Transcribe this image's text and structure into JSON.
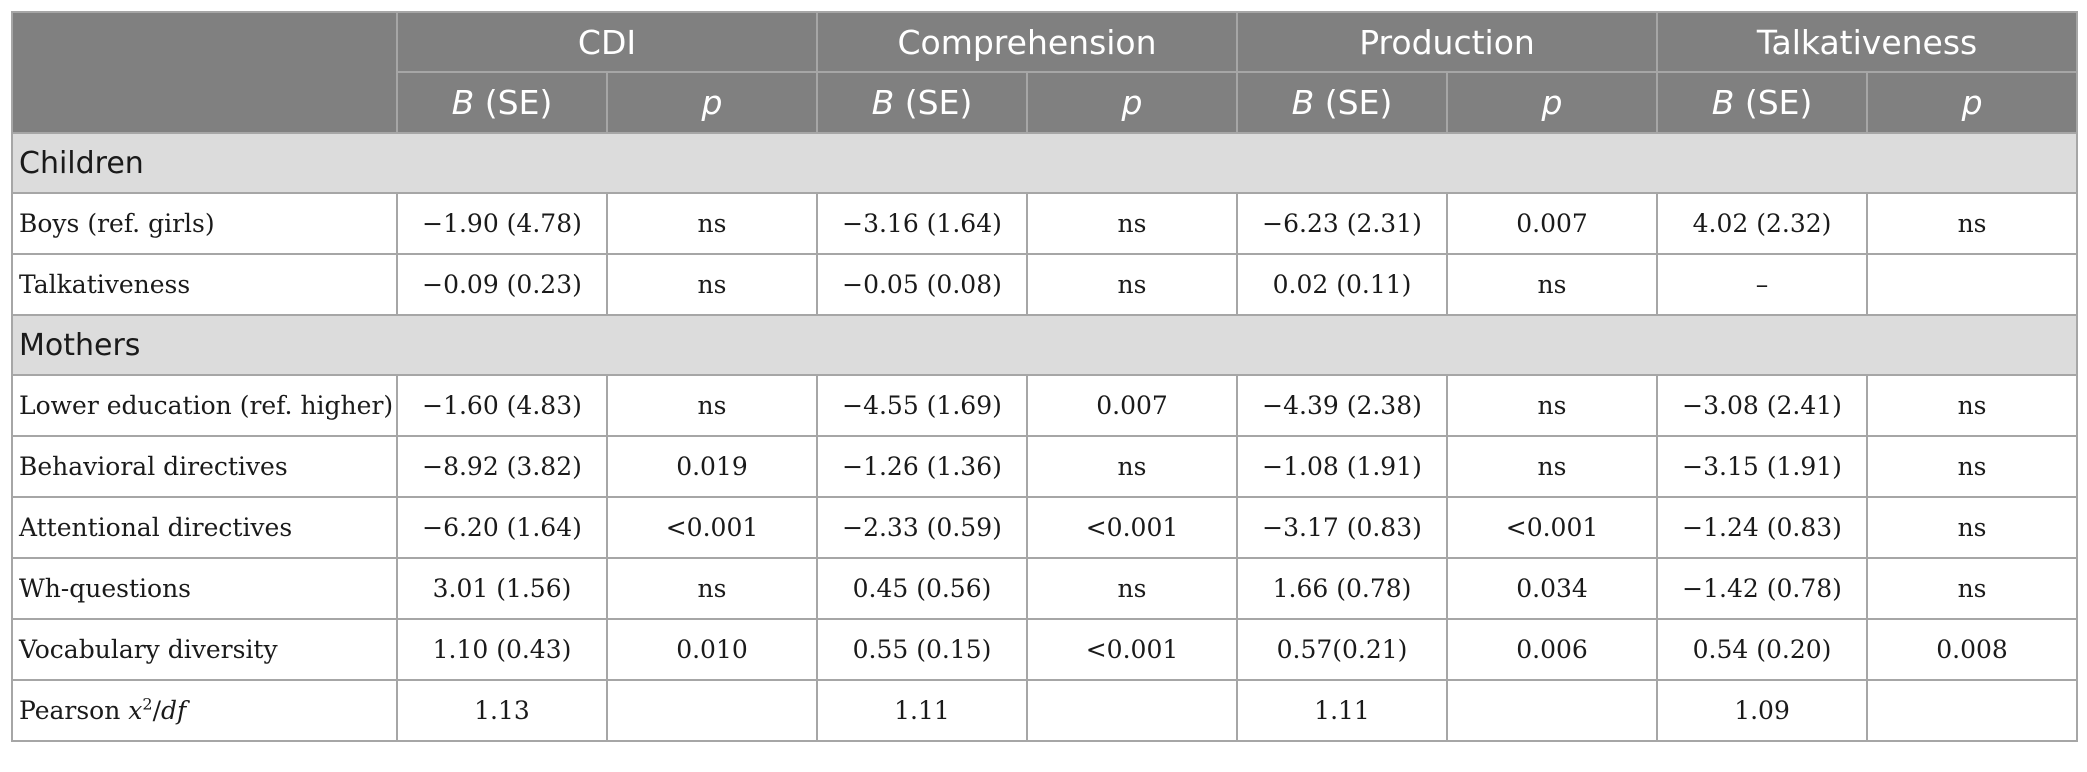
{
  "header": {
    "groups": [
      "CDI",
      "Comprehension",
      "Production",
      "Talkativeness"
    ],
    "sub_b": "B",
    "sub_se": " (SE)",
    "sub_p": "p"
  },
  "sections": [
    {
      "title": "Children",
      "rows": [
        {
          "label": "Boys (ref. girls)",
          "cells": [
            "−1.90 (4.78)",
            "ns",
            "−3.16 (1.64)",
            "ns",
            "−6.23 (2.31)",
            "0.007",
            "4.02 (2.32)",
            "ns"
          ]
        },
        {
          "label": "Talkativeness",
          "cells": [
            "−0.09 (0.23)",
            "ns",
            "−0.05 (0.08)",
            "ns",
            "0.02 (0.11)",
            "ns",
            "–",
            ""
          ]
        }
      ]
    },
    {
      "title": "Mothers",
      "rows": [
        {
          "label": "Lower education (ref. higher)",
          "cells": [
            "−1.60 (4.83)",
            "ns",
            "−4.55 (1.69)",
            "0.007",
            "−4.39 (2.38)",
            "ns",
            "−3.08 (2.41)",
            "ns"
          ]
        },
        {
          "label": "Behavioral directives",
          "cells": [
            "−8.92 (3.82)",
            "0.019",
            "−1.26 (1.36)",
            "ns",
            "−1.08 (1.91)",
            "ns",
            "−3.15 (1.91)",
            "ns"
          ]
        },
        {
          "label": "Attentional directives",
          "cells": [
            "−6.20 (1.64)",
            "<0.001",
            "−2.33 (0.59)",
            "<0.001",
            "−3.17 (0.83)",
            "<0.001",
            "−1.24 (0.83)",
            "ns"
          ]
        },
        {
          "label": "Wh-questions",
          "cells": [
            "3.01 (1.56)",
            "ns",
            "0.45 (0.56)",
            "ns",
            "1.66 (0.78)",
            "0.034",
            "−1.42 (0.78)",
            "ns"
          ]
        },
        {
          "label": "Vocabulary diversity",
          "cells": [
            "1.10 (0.43)",
            "0.010",
            "0.55 (0.15)",
            "<0.001",
            "0.57(0.21)",
            "0.006",
            "0.54 (0.20)",
            "0.008"
          ]
        }
      ]
    }
  ],
  "footer": {
    "label_prefix": "Pearson ",
    "label_x": "x",
    "label_sup": "2",
    "label_slash": "/",
    "label_df": "df",
    "cells": [
      "1.13",
      "",
      "1.11",
      "",
      "1.11",
      "",
      "1.09",
      ""
    ]
  }
}
